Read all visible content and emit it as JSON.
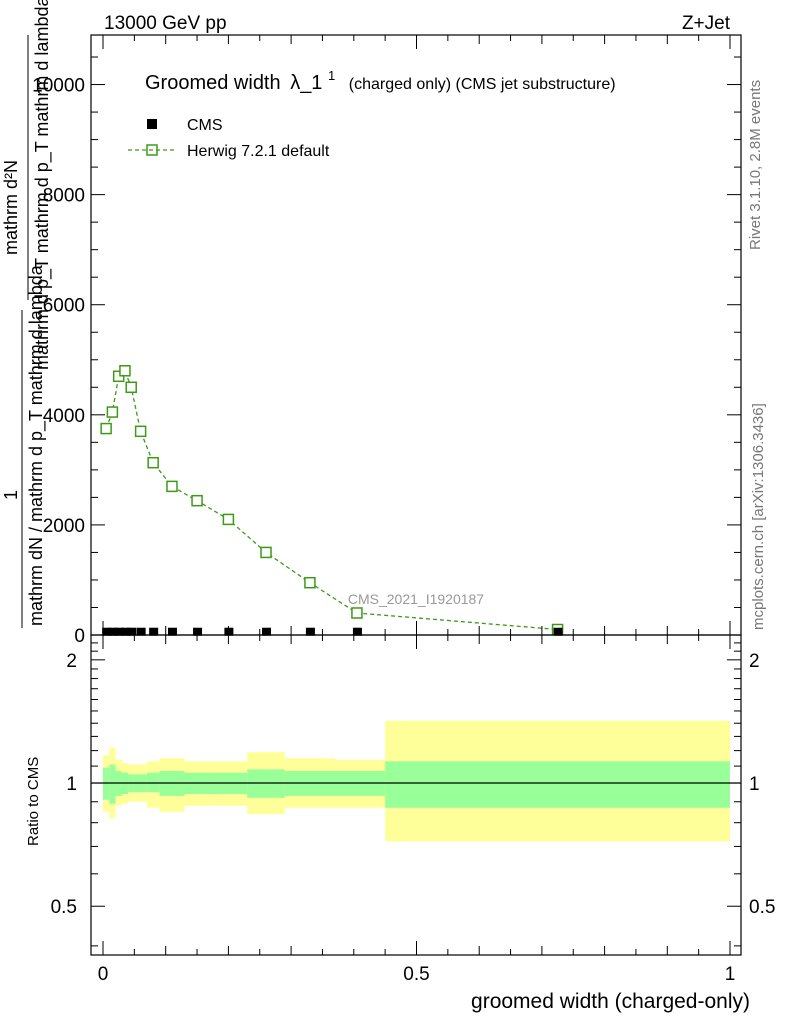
{
  "header": {
    "left": "13000 GeV pp",
    "right": "Z+Jet"
  },
  "side_labels": {
    "right_top": "Rivet 3.1.10,  2.8M events",
    "right_bottom": "mcplots.cern.ch [arXiv:1306.3436]"
  },
  "chart_data": [
    {
      "type": "line",
      "panel": "main",
      "title": "Groomed width",
      "title_symbol": "λ_1",
      "title_superscript": "1",
      "title_suffix": "(charged only) (CMS jet substructure)",
      "ylabel_line1": "mathrm d²N",
      "ylabel_line2": "mathrm d p_T mathrm d p_T mathrm d lambda",
      "ylabel_left_num": "1",
      "ylabel_left_den": "mathrm dN / mathrm d p_T mathrm d lambda",
      "watermark": "CMS_2021_I1920187",
      "xlim": [
        0,
        1
      ],
      "ylim": [
        0,
        10900
      ],
      "y_ticks": [
        0,
        2000,
        4000,
        6000,
        8000,
        10000
      ],
      "y_tick_labels": [
        "0",
        "2000",
        "4000",
        "6000",
        "8000",
        "10000"
      ],
      "legend_position": "top-left",
      "series": [
        {
          "name": "CMS",
          "marker": "filled-square",
          "color": "#000000",
          "x": [
            0.005,
            0.015,
            0.025,
            0.035,
            0.045,
            0.06,
            0.08,
            0.11,
            0.15,
            0.2,
            0.26,
            0.33,
            0.405,
            0.725
          ],
          "y": [
            5,
            5,
            5,
            5,
            5,
            5,
            5,
            5,
            5,
            5,
            5,
            5,
            5,
            5
          ]
        },
        {
          "name": "Herwig 7.2.1 default",
          "marker": "open-square",
          "line": "dashed",
          "color": "#3d9a16",
          "x": [
            0.005,
            0.015,
            0.025,
            0.035,
            0.045,
            0.06,
            0.08,
            0.11,
            0.15,
            0.2,
            0.26,
            0.33,
            0.405,
            0.725
          ],
          "y": [
            3750,
            4050,
            4700,
            4800,
            4500,
            3700,
            3130,
            2700,
            2440,
            2100,
            1500,
            950,
            400,
            100
          ]
        }
      ]
    },
    {
      "type": "area",
      "panel": "ratio",
      "ylabel": "Ratio to CMS",
      "xlabel": "groomed width (charged-only)",
      "xlim": [
        0,
        1
      ],
      "ylim": [
        0.38,
        2.3
      ],
      "scale": "log",
      "y_ticks": [
        0.5,
        1,
        2
      ],
      "y_tick_labels": [
        "0.5",
        "1",
        "2"
      ],
      "x_ticks": [
        0,
        0.5,
        1
      ],
      "x_tick_labels": [
        "0",
        "0.5",
        "1"
      ],
      "bands": {
        "edges": [
          0,
          0.01,
          0.02,
          0.03,
          0.04,
          0.05,
          0.07,
          0.09,
          0.13,
          0.17,
          0.23,
          0.29,
          0.37,
          0.45,
          1.0
        ],
        "inner_low": [
          0.91,
          0.89,
          0.93,
          0.94,
          0.95,
          0.95,
          0.95,
          0.93,
          0.94,
          0.94,
          0.92,
          0.93,
          0.93,
          0.87
        ],
        "inner_high": [
          1.09,
          1.11,
          1.07,
          1.06,
          1.05,
          1.05,
          1.06,
          1.07,
          1.06,
          1.06,
          1.08,
          1.07,
          1.07,
          1.13
        ],
        "outer_low": [
          0.85,
          0.82,
          0.88,
          0.89,
          0.9,
          0.9,
          0.87,
          0.85,
          0.88,
          0.88,
          0.84,
          0.87,
          0.87,
          0.72
        ],
        "outer_high": [
          1.17,
          1.22,
          1.14,
          1.12,
          1.11,
          1.11,
          1.13,
          1.15,
          1.13,
          1.13,
          1.19,
          1.15,
          1.14,
          1.42
        ]
      },
      "reference_line": 1,
      "colors": {
        "inner": "#99ff99",
        "outer": "#ffff99"
      }
    }
  ]
}
